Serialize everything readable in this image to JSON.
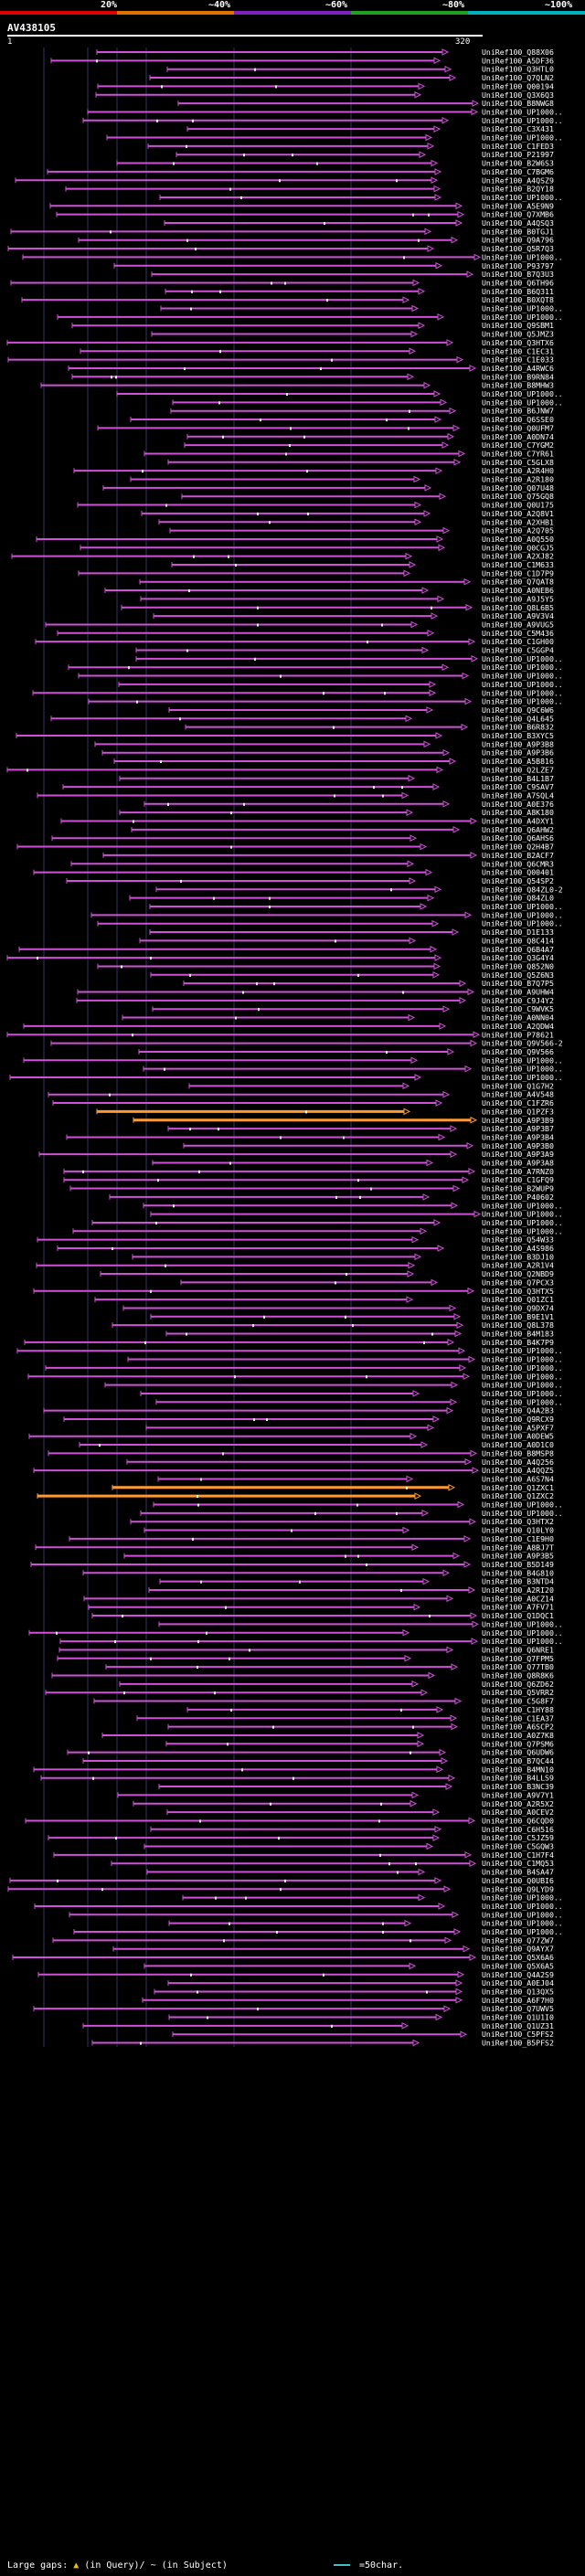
{
  "scale": {
    "labels": [
      "20%",
      "~40%",
      "~60%",
      "~80%",
      "~100%"
    ],
    "colors": [
      "#e00000",
      "#e07000",
      "#8020c0",
      "#20a020",
      "#00b0c0"
    ]
  },
  "query": {
    "id": "AV438105",
    "start": "1",
    "end": "320"
  },
  "hits": [
    "UniRef100_Q88X06",
    "UniRef100_A5DF36",
    "UniRef100_Q3HTL0",
    "UniRef100_Q7QLN2",
    "UniRef100_Q00194",
    "UniRef100_Q3X6Q3",
    "UniRef100_B8NWG8",
    "UniRef100_UP1000..",
    "UniRef100_UP1000..",
    "UniRef100_C3X431",
    "UniRef100_UP1000..",
    "UniRef100_C1FED3",
    "UniRef100_P21997",
    "UniRef100_B2W6S3",
    "UniRef100_C7BGM6",
    "UniRef100_A4QSZ9",
    "UniRef100_B2QY18",
    "UniRef100_UP1000..",
    "UniRef100_A5E9N9",
    "UniRef100_Q7XMB6",
    "UniRef100_A4QSQ3",
    "UniRef100_B0TGJ1",
    "UniRef100_Q9A796",
    "UniRef100_Q5R7Q3",
    "UniRef100_UP1000..",
    "UniRef100_P93797",
    "UniRef100_B7Q3U3",
    "UniRef100_Q6TH96",
    "UniRef100_B6Q311",
    "UniRef100_B0XQT8",
    "UniRef100_UP1000..",
    "UniRef100_UP1000..",
    "UniRef100_Q9SBM1",
    "UniRef100_Q5JMZ3",
    "UniRef100_Q3HTX6",
    "UniRef100_C1EC31",
    "UniRef100_C1E033",
    "UniRef100_A4RWC6",
    "UniRef100_B9RN84",
    "UniRef100_B8MHW3",
    "UniRef100_UP1000..",
    "UniRef100_UP1000..",
    "UniRef100_B6JNW7",
    "UniRef100_Q6SSE0",
    "UniRef100_Q0UFM7",
    "UniRef100_A0DN74",
    "UniRef100_C7YGM2",
    "UniRef100_C7YR61",
    "UniRef100_C5GLX8",
    "UniRef100_A2R4H0",
    "UniRef100_A2R180",
    "UniRef100_Q07U48",
    "UniRef100_Q75GQ8",
    "UniRef100_Q0U175",
    "UniRef100_A2Q8V1",
    "UniRef100_A2XHB1",
    "UniRef100_A2Q705",
    "UniRef100_A0Q550",
    "UniRef100_Q0CGJ5",
    "UniRef100_A2XJ82",
    "UniRef100_C1M633",
    "UniRef100_C1D7P9",
    "UniRef100_Q7QAT8",
    "UniRef100_A0NEB6",
    "UniRef100_A9J5Y5",
    "UniRef100_Q8L6B5",
    "UniRef100_A9V3V4",
    "UniRef100_A9VUG5",
    "UniRef100_C5M436",
    "UniRef100_C1GH00",
    "UniRef100_C5GGP4",
    "UniRef100_UP1000..",
    "UniRef100_UP1000..",
    "UniRef100_UP1000..",
    "UniRef100_UP1000..",
    "UniRef100_UP1000..",
    "UniRef100_UP1000..",
    "UniRef100_Q9C6W6",
    "UniRef100_Q4L645",
    "UniRef100_B6R832",
    "UniRef100_B3XYC5",
    "UniRef100_A9P3B8",
    "UniRef100_A9P3B6",
    "UniRef100_A5B816",
    "UniRef100_Q2LZE7",
    "UniRef100_B4L1B7",
    "UniRef100_C9SAV7",
    "UniRef100_A7SQL4",
    "UniRef100_A0E376",
    "UniRef100_A8K180",
    "UniRef100_A4DXY1",
    "UniRef100_Q6AHW2",
    "UniRef100_Q6AHS6",
    "UniRef100_Q2H4B7",
    "UniRef100_B2ACF7",
    "UniRef100_Q6CMR3",
    "UniRef100_Q00401",
    "UniRef100_Q54SP2",
    "UniRef100_Q84ZL0-2",
    "UniRef100_Q84ZL0",
    "UniRef100_UP1000..",
    "UniRef100_UP1000..",
    "UniRef100_UP1000..",
    "UniRef100_D1E133",
    "UniRef100_Q8C414",
    "UniRef100_Q6B4A7",
    "UniRef100_Q3G4Y4",
    "UniRef100_Q852N0",
    "UniRef100_Q5Z6N3",
    "UniRef100_B7Q7P5",
    "UniRef100_A9UHW4",
    "UniRef100_C9J4Y2",
    "UniRef100_C9WVK5",
    "UniRef100_A0NN04",
    "UniRef100_A2QDW4",
    "UniRef100_P78621",
    "UniRef100_Q9V566-2",
    "UniRef100_Q9V566",
    "UniRef100_UP1000..",
    "UniRef100_UP1000..",
    "UniRef100_UP1000..",
    "UniRef100_Q1G7H2",
    "UniRef100_A4V548",
    "UniRef100_C1FZR6",
    "UniRef100_Q1PZF3",
    "UniRef100_A9P3B9",
    "UniRef100_A9P3B7",
    "UniRef100_A9P3B4",
    "UniRef100_A9P3B0",
    "UniRef100_A9P3A9",
    "UniRef100_A9P3A8",
    "UniRef100_A7RNZ0",
    "UniRef100_C1GFQ9",
    "UniRef100_B2WUP9",
    "UniRef100_P40602",
    "UniRef100_UP1000..",
    "UniRef100_UP1000..",
    "UniRef100_UP1000..",
    "UniRef100_UP1000..",
    "UniRef100_Q54W33",
    "UniRef100_A4S986",
    "UniRef100_B3DJ10",
    "UniRef100_A2R1V4",
    "UniRef100_Q2NBD9",
    "UniRef100_Q7PCX3",
    "UniRef100_Q3HTX5",
    "UniRef100_Q01ZC1",
    "UniRef100_Q9DX74",
    "UniRef100_B9E1V1",
    "UniRef100_Q8L378",
    "UniRef100_B4M183",
    "UniRef100_B4K7P9",
    "UniRef100_UP1000..",
    "UniRef100_UP1000..",
    "UniRef100_UP1000..",
    "UniRef100_UP1000..",
    "UniRef100_UP1000..",
    "UniRef100_UP1000..",
    "UniRef100_UP1000..",
    "UniRef100_Q4A2B3",
    "UniRef100_Q9RCX9",
    "UniRef100_A5PXF7",
    "UniRef100_A0DEW5",
    "UniRef100_A0D1C0",
    "UniRef100_B8MSP8",
    "UniRef100_A4Q256",
    "UniRef100_A4QQZ5",
    "UniRef100_A6S7N4",
    "UniRef100_Q1ZXC1",
    "UniRef100_Q1ZXC2",
    "UniRef100_UP1000..",
    "UniRef100_UP1000..",
    "UniRef100_Q3HTX2",
    "UniRef100_Q10LY0",
    "UniRef100_C1E9H0",
    "UniRef100_A8BJ7T",
    "UniRef100_A9P3B5",
    "UniRef100_B5D149",
    "UniRef100_B4G810",
    "UniRef100_B3NTD4",
    "UniRef100_A2RI20",
    "UniRef100_A0CZ14",
    "UniRef100_A7FV71",
    "UniRef100_Q1DQC1",
    "UniRef100_UP1000..",
    "UniRef100_UP1000..",
    "UniRef100_UP1000..",
    "UniRef100_Q6NRE1",
    "UniRef100_Q7FPM5",
    "UniRef100_Q77TB0",
    "UniRef100_Q8R8K6",
    "UniRef100_Q6ZD62",
    "UniRef100_Q5VRR2",
    "UniRef100_C5G8F7",
    "UniRef100_C1HY88",
    "UniRef100_C1EA37",
    "UniRef100_A6SCP2",
    "UniRef100_A0Z7K8",
    "UniRef100_Q7PSM6",
    "UniRef100_Q6UDW6",
    "UniRef100_B7QC44",
    "UniRef100_B4MN10",
    "UniRef100_B4LLS9",
    "UniRef100_B3NC39",
    "UniRef100_A9V7Y1",
    "UniRef100_A2R5X2",
    "UniRef100_A0CEV2",
    "UniRef100_Q6CQD0",
    "UniRef100_C6H516",
    "UniRef100_C5JZ59",
    "UniRef100_C5GQW3",
    "UniRef100_C1H7F4",
    "UniRef100_C1MQ53",
    "UniRef100_B4SA47",
    "UniRef100_Q0UBI6",
    "UniRef100_Q9LYD9",
    "UniRef100_UP1000..",
    "UniRef100_UP1000..",
    "UniRef100_UP1000..",
    "UniRef100_UP1000..",
    "UniRef100_UP1000..",
    "UniRef100_Q77ZW7",
    "UniRef100_Q9AYX7",
    "UniRef100_Q5X6A6",
    "UniRef100_Q5X6A5",
    "UniRef100_Q4A2S9",
    "UniRef100_A0EJ04",
    "UniRef100_Q13QX5",
    "UniRef100_A6F7H0",
    "UniRef100_Q7UWV5",
    "UniRef100_Q1U1I0",
    "UniRef100_Q1UZ31",
    "UniRef100_C5PFS2",
    "UniRef100_B5PFS2"
  ],
  "highlighted_rows": [
    {
      "index": 124,
      "color": "#ff9a30"
    },
    {
      "index": 125,
      "color": "#ff9a30"
    },
    {
      "index": 168,
      "color": "#ff9a30"
    },
    {
      "index": 169,
      "color": "#ff9a30"
    }
  ],
  "colors": {
    "hit": "#d050d8",
    "highlight": "#ff9a30",
    "gap": "#ffffff",
    "grid": "#333366",
    "label": "#ffffff"
  },
  "footer": {
    "large_gaps": "Large gaps:",
    "in_query": "(in Query)/",
    "in_subject": "~ (in Subject)",
    "scale_label": "=50char."
  }
}
